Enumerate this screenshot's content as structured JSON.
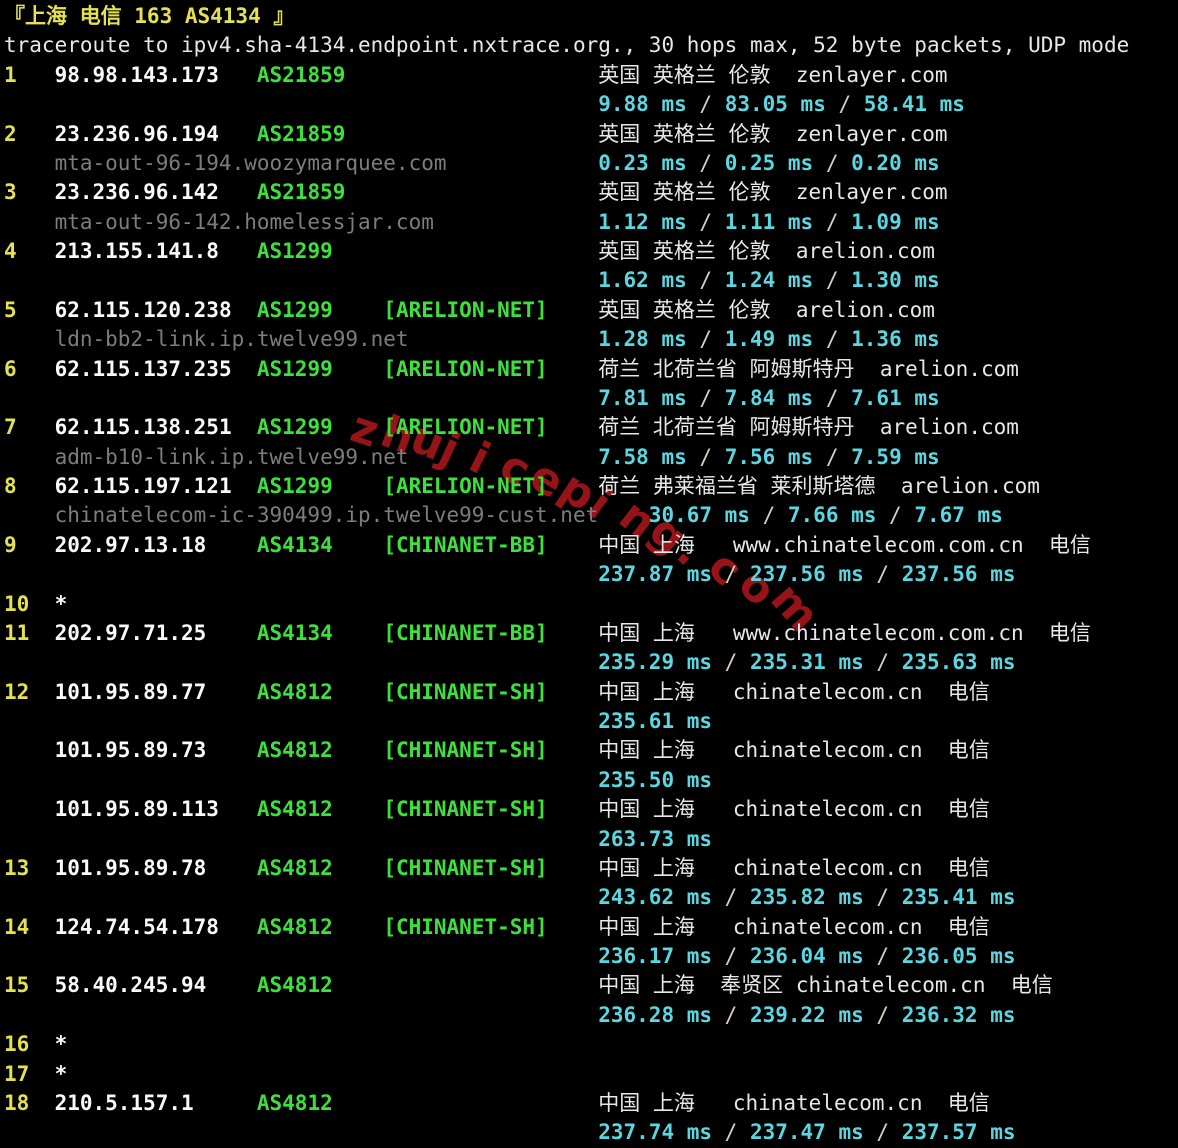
{
  "terminal": {
    "header": "『上海 电信 163 AS4134 』",
    "command_line": "traceroute to ipv4.sha-4134.endpoint.nxtrace.org., 30 hops max, 52 byte packets, UDP mode",
    "latency_separator": " / ",
    "watermark": "zhujiceping.com"
  },
  "colors": {
    "background": "#000000",
    "header_yellow": "#e6e150",
    "ip_white": "#fafafa",
    "text_white": "#e8e8e8",
    "asn_green": "#3ce13c",
    "hostname_gray": "#7d7d7d",
    "latency_cyan": "#5ad7e1",
    "watermark_red": "#b0161c"
  },
  "hops": [
    {
      "hop": "1",
      "entries": [
        {
          "ip": "98.98.143.173",
          "asn": "AS21859",
          "tag": "",
          "hostname": "",
          "geo": "英国 英格兰 伦敦  zenlayer.com",
          "latency": [
            "9.88 ms",
            "83.05 ms",
            "58.41 ms"
          ]
        }
      ]
    },
    {
      "hop": "2",
      "entries": [
        {
          "ip": "23.236.96.194",
          "asn": "AS21859",
          "tag": "",
          "hostname": "mta-out-96-194.woozymarquee.com",
          "geo": "英国 英格兰 伦敦  zenlayer.com",
          "latency": [
            "0.23 ms",
            "0.25 ms",
            "0.20 ms"
          ]
        }
      ]
    },
    {
      "hop": "3",
      "entries": [
        {
          "ip": "23.236.96.142",
          "asn": "AS21859",
          "tag": "",
          "hostname": "mta-out-96-142.homelessjar.com",
          "geo": "英国 英格兰 伦敦  zenlayer.com",
          "latency": [
            "1.12 ms",
            "1.11 ms",
            "1.09 ms"
          ]
        }
      ]
    },
    {
      "hop": "4",
      "entries": [
        {
          "ip": "213.155.141.8",
          "asn": "AS1299",
          "tag": "",
          "hostname": "",
          "geo": "英国 英格兰 伦敦  arelion.com",
          "latency": [
            "1.62 ms",
            "1.24 ms",
            "1.30 ms"
          ]
        }
      ]
    },
    {
      "hop": "5",
      "entries": [
        {
          "ip": "62.115.120.238",
          "asn": "AS1299",
          "tag": "[ARELION-NET]",
          "hostname": "ldn-bb2-link.ip.twelve99.net",
          "geo": "英国 英格兰 伦敦  arelion.com",
          "latency": [
            "1.28 ms",
            "1.49 ms",
            "1.36 ms"
          ]
        }
      ]
    },
    {
      "hop": "6",
      "entries": [
        {
          "ip": "62.115.137.235",
          "asn": "AS1299",
          "tag": "[ARELION-NET]",
          "hostname": "",
          "geo": "荷兰 北荷兰省 阿姆斯特丹  arelion.com",
          "latency": [
            "7.81 ms",
            "7.84 ms",
            "7.61 ms"
          ]
        }
      ]
    },
    {
      "hop": "7",
      "entries": [
        {
          "ip": "62.115.138.251",
          "asn": "AS1299",
          "tag": "[ARELION-NET]",
          "hostname": "adm-b10-link.ip.twelve99.net",
          "geo": "荷兰 北荷兰省 阿姆斯特丹  arelion.com",
          "latency": [
            "7.58 ms",
            "7.56 ms",
            "7.59 ms"
          ]
        }
      ]
    },
    {
      "hop": "8",
      "entries": [
        {
          "ip": "62.115.197.121",
          "asn": "AS1299",
          "tag": "[ARELION-NET]",
          "hostname": "chinatelecom-ic-390499.ip.twelve99-cust.net",
          "geo": "荷兰 弗莱福兰省 莱利斯塔德  arelion.com",
          "latency": [
            "30.67 ms",
            "7.66 ms",
            "7.67 ms"
          ]
        }
      ]
    },
    {
      "hop": "9",
      "entries": [
        {
          "ip": "202.97.13.18",
          "asn": "AS4134",
          "tag": "[CHINANET-BB]",
          "hostname": "",
          "geo": "中国 上海   www.chinatelecom.com.cn  电信",
          "latency": [
            "237.87 ms",
            "237.56 ms",
            "237.56 ms"
          ]
        }
      ]
    },
    {
      "hop": "10",
      "entries": [
        {
          "star": true
        }
      ]
    },
    {
      "hop": "11",
      "entries": [
        {
          "ip": "202.97.71.25",
          "asn": "AS4134",
          "tag": "[CHINANET-BB]",
          "hostname": "",
          "geo": "中国 上海   www.chinatelecom.com.cn  电信",
          "latency": [
            "235.29 ms",
            "235.31 ms",
            "235.63 ms"
          ]
        }
      ]
    },
    {
      "hop": "12",
      "entries": [
        {
          "ip": "101.95.89.77",
          "asn": "AS4812",
          "tag": "[CHINANET-SH]",
          "hostname": "",
          "geo": "中国 上海   chinatelecom.cn  电信",
          "latency": [
            "235.61 ms"
          ]
        },
        {
          "ip": "101.95.89.73",
          "asn": "AS4812",
          "tag": "[CHINANET-SH]",
          "hostname": "",
          "geo": "中国 上海   chinatelecom.cn  电信",
          "latency": [
            "235.50 ms"
          ]
        },
        {
          "ip": "101.95.89.113",
          "asn": "AS4812",
          "tag": "[CHINANET-SH]",
          "hostname": "",
          "geo": "中国 上海   chinatelecom.cn  电信",
          "latency": [
            "263.73 ms"
          ]
        }
      ]
    },
    {
      "hop": "13",
      "entries": [
        {
          "ip": "101.95.89.78",
          "asn": "AS4812",
          "tag": "[CHINANET-SH]",
          "hostname": "",
          "geo": "中国 上海   chinatelecom.cn  电信",
          "latency": [
            "243.62 ms",
            "235.82 ms",
            "235.41 ms"
          ]
        }
      ]
    },
    {
      "hop": "14",
      "entries": [
        {
          "ip": "124.74.54.178",
          "asn": "AS4812",
          "tag": "[CHINANET-SH]",
          "hostname": "",
          "geo": "中国 上海   chinatelecom.cn  电信",
          "latency": [
            "236.17 ms",
            "236.04 ms",
            "236.05 ms"
          ]
        }
      ]
    },
    {
      "hop": "15",
      "entries": [
        {
          "ip": "58.40.245.94",
          "asn": "AS4812",
          "tag": "",
          "hostname": "",
          "geo": "中国 上海  奉贤区 chinatelecom.cn  电信",
          "latency": [
            "236.28 ms",
            "239.22 ms",
            "236.32 ms"
          ]
        }
      ]
    },
    {
      "hop": "16",
      "entries": [
        {
          "star": true
        }
      ]
    },
    {
      "hop": "17",
      "entries": [
        {
          "star": true
        }
      ]
    },
    {
      "hop": "18",
      "entries": [
        {
          "ip": "210.5.157.1",
          "asn": "AS4812",
          "tag": "",
          "hostname": "",
          "geo": "中国 上海   chinatelecom.cn  电信",
          "latency": [
            "237.74 ms",
            "237.47 ms",
            "237.57 ms"
          ]
        }
      ]
    }
  ]
}
